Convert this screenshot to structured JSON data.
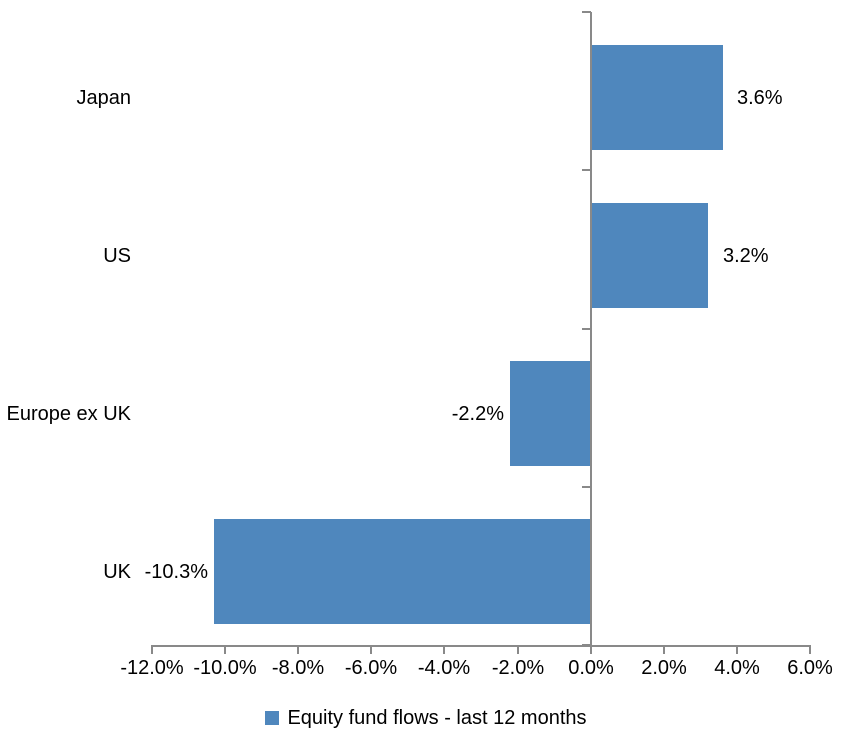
{
  "chart_data": {
    "type": "bar",
    "orientation": "horizontal",
    "title": "",
    "categories": [
      "Japan",
      "US",
      "Europe ex UK",
      "UK"
    ],
    "series": [
      {
        "name": "Equity fund flows - last 12 months",
        "values": [
          3.6,
          3.2,
          -2.2,
          -10.3
        ]
      }
    ],
    "data_labels": [
      "3.6%",
      "3.2%",
      "-2.2%",
      "-10.3%"
    ],
    "x_tick_labels": [
      "-12.0%",
      "-10.0%",
      "-8.0%",
      "-6.0%",
      "-4.0%",
      "-2.0%",
      "0.0%",
      "2.0%",
      "4.0%",
      "6.0%"
    ],
    "xlim": [
      -12,
      6
    ],
    "x_tick_step": 2,
    "grid": false,
    "legend": {
      "position": "bottom",
      "label": "Equity fund flows - last 12 months"
    },
    "colors": {
      "bar": "#4F87BD",
      "axis": "#898989",
      "text": "#000000",
      "background": "#FFFFFF"
    }
  }
}
